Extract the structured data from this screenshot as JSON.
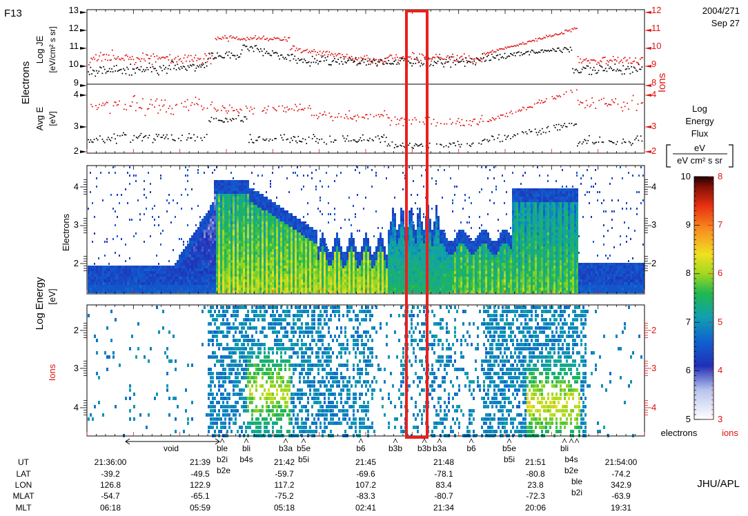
{
  "header": {
    "satellite": "F13",
    "date_code": "2004/271",
    "date_text": "Sep 27",
    "credit": "JHU/APL"
  },
  "chart_data": [
    {
      "type": "scatter",
      "panel": "Log JE",
      "group_label": "Electrons",
      "ylabel_left": "Log JE",
      "ylabel_unit": "[eV/cm² s sr]",
      "ylabel_right": "Ions",
      "left_ticks": [
        "13",
        "12",
        "11",
        "10",
        "9"
      ],
      "right_ticks": [
        "12",
        "11",
        "10",
        "9",
        "8"
      ],
      "ylim_left": [
        9,
        13
      ],
      "ylim_right": [
        8,
        12
      ],
      "series": [
        {
          "color": "#000000"
        },
        {
          "color": "#e01010"
        }
      ]
    },
    {
      "type": "scatter",
      "panel": "Avg E",
      "ylabel_left": "Avg E",
      "ylabel_unit": "[eV]",
      "left_ticks": [
        "4",
        "3",
        "2"
      ],
      "right_ticks": [
        "4",
        "3",
        "2"
      ],
      "ylim_left": [
        2,
        4.3
      ],
      "ylim_right": [
        2,
        4.3
      ]
    },
    {
      "type": "heatmap",
      "panel": "electron spectrogram",
      "ylabel": "Electrons",
      "shared_ylabel": "Log Energy",
      "shared_yunit": "[eV]",
      "left_ticks": [
        "4",
        "3",
        "2"
      ],
      "right_ticks": [
        "4",
        "3",
        "2"
      ]
    },
    {
      "type": "heatmap",
      "panel": "ion spectrogram",
      "ylabel": "Ions",
      "left_ticks": [
        "2",
        "3",
        "4"
      ],
      "right_ticks": [
        "2",
        "3",
        "4"
      ]
    }
  ],
  "colorbar": {
    "title_lines": [
      "Log",
      "Energy",
      "Flux"
    ],
    "unit_num": "eV",
    "unit_den": "eV cm² s sr",
    "left_ticks": [
      "10",
      "9",
      "8",
      "7",
      "6",
      "5"
    ],
    "right_ticks": [
      "8",
      "7",
      "6",
      "5",
      "4",
      "3"
    ],
    "left_label": "electrons",
    "right_label": "ions",
    "colors": {
      "electrons": "#000000",
      "ions": "#e01010"
    }
  },
  "boundaries": {
    "void": "void",
    "labels_row1": [
      "ble",
      "bli",
      "b3a",
      "b5e",
      "b6",
      "b3b",
      "b3b",
      "b3a",
      "b6",
      "b5e",
      "bli"
    ],
    "labels_row2": [
      "b2i",
      "b4s",
      "b5i",
      "b5i",
      "b4s"
    ],
    "labels_row3": [
      "b2e",
      "b2e"
    ],
    "labels_row4": [
      "ble"
    ],
    "labels_row5": [
      "b2i"
    ]
  },
  "ephemeris": {
    "row_labels": [
      "UT",
      "LAT",
      "LON",
      "MLAT",
      "MLT"
    ],
    "columns": [
      {
        "UT": "21:36:00",
        "LAT": "-39.2",
        "LON": "126.8",
        "MLAT": "-54.7",
        "MLT": "06:18"
      },
      {
        "UT": "21:39",
        "LAT": "-49.5",
        "LON": "122.9",
        "MLAT": "-65.1",
        "MLT": "05:59"
      },
      {
        "UT": "21:42",
        "LAT": "-59.7",
        "LON": "117.2",
        "MLAT": "-75.2",
        "MLT": "05:18"
      },
      {
        "UT": "21:45",
        "LAT": "-69.6",
        "LON": "107.2",
        "MLAT": "-83.3",
        "MLT": "02:41"
      },
      {
        "UT": "21:48",
        "LAT": "-78.1",
        "LON": "83.4",
        "MLAT": "-80.7",
        "MLT": "21:34"
      },
      {
        "UT": "21:51",
        "LAT": "-80.8",
        "LON": "23.8",
        "MLAT": "-72.3",
        "MLT": "20:06"
      },
      {
        "UT": "21:54:00",
        "LAT": "-74.2",
        "LON": "342.9",
        "MLAT": "-63.9",
        "MLT": "19:31"
      }
    ]
  }
}
